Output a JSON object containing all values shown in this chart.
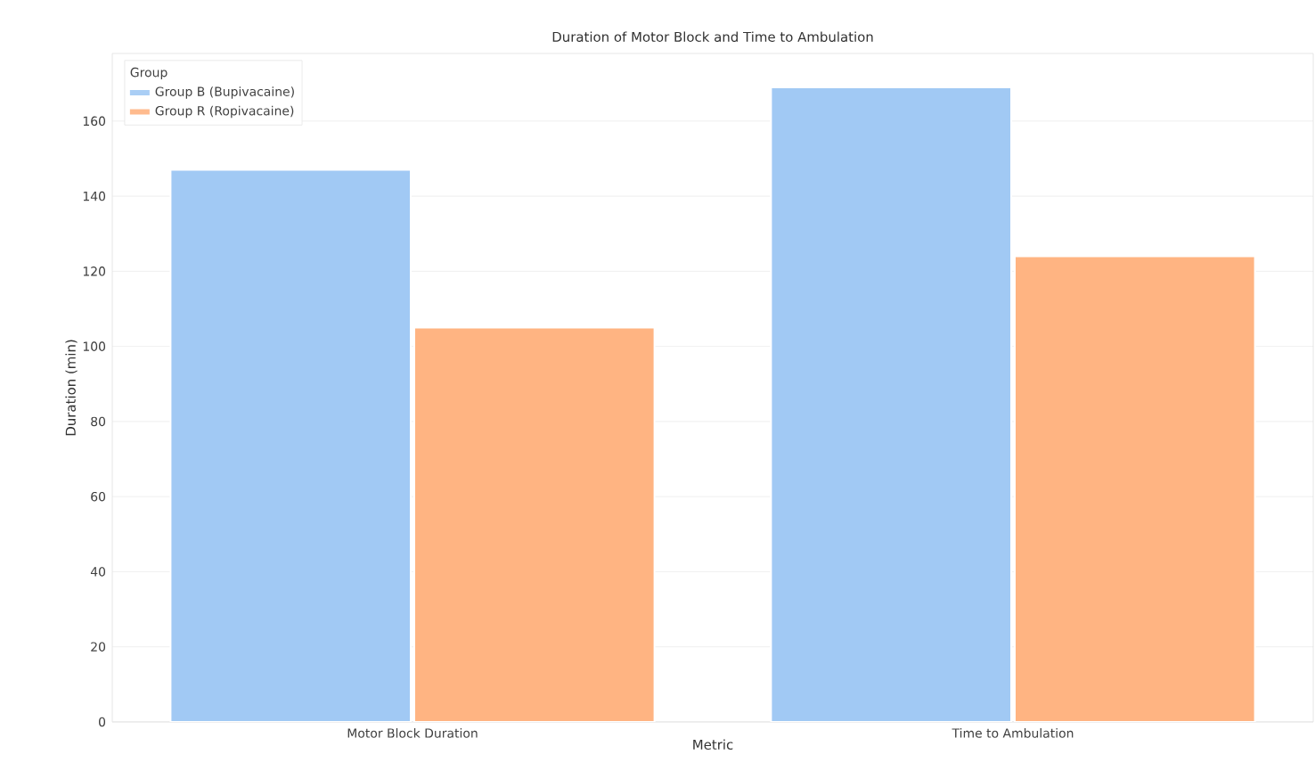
{
  "chart_data": {
    "type": "bar",
    "title": "Duration of Motor Block and Time to Ambulation",
    "xlabel": "Metric",
    "ylabel": "Duration (min)",
    "legend_title": "Group",
    "categories": [
      "Motor Block Duration",
      "Time to Ambulation"
    ],
    "series": [
      {
        "name": "Group B (Bupivacaine)",
        "color": "#a1c9f4",
        "values": [
          147,
          169
        ]
      },
      {
        "name": "Group R (Ropivacaine)",
        "color": "#ffb482",
        "values": [
          105,
          124
        ]
      }
    ],
    "ylim": [
      0,
      178
    ],
    "yticks": [
      0,
      20,
      40,
      60,
      80,
      100,
      120,
      140,
      160
    ],
    "grid": "y",
    "legend": "top left"
  }
}
